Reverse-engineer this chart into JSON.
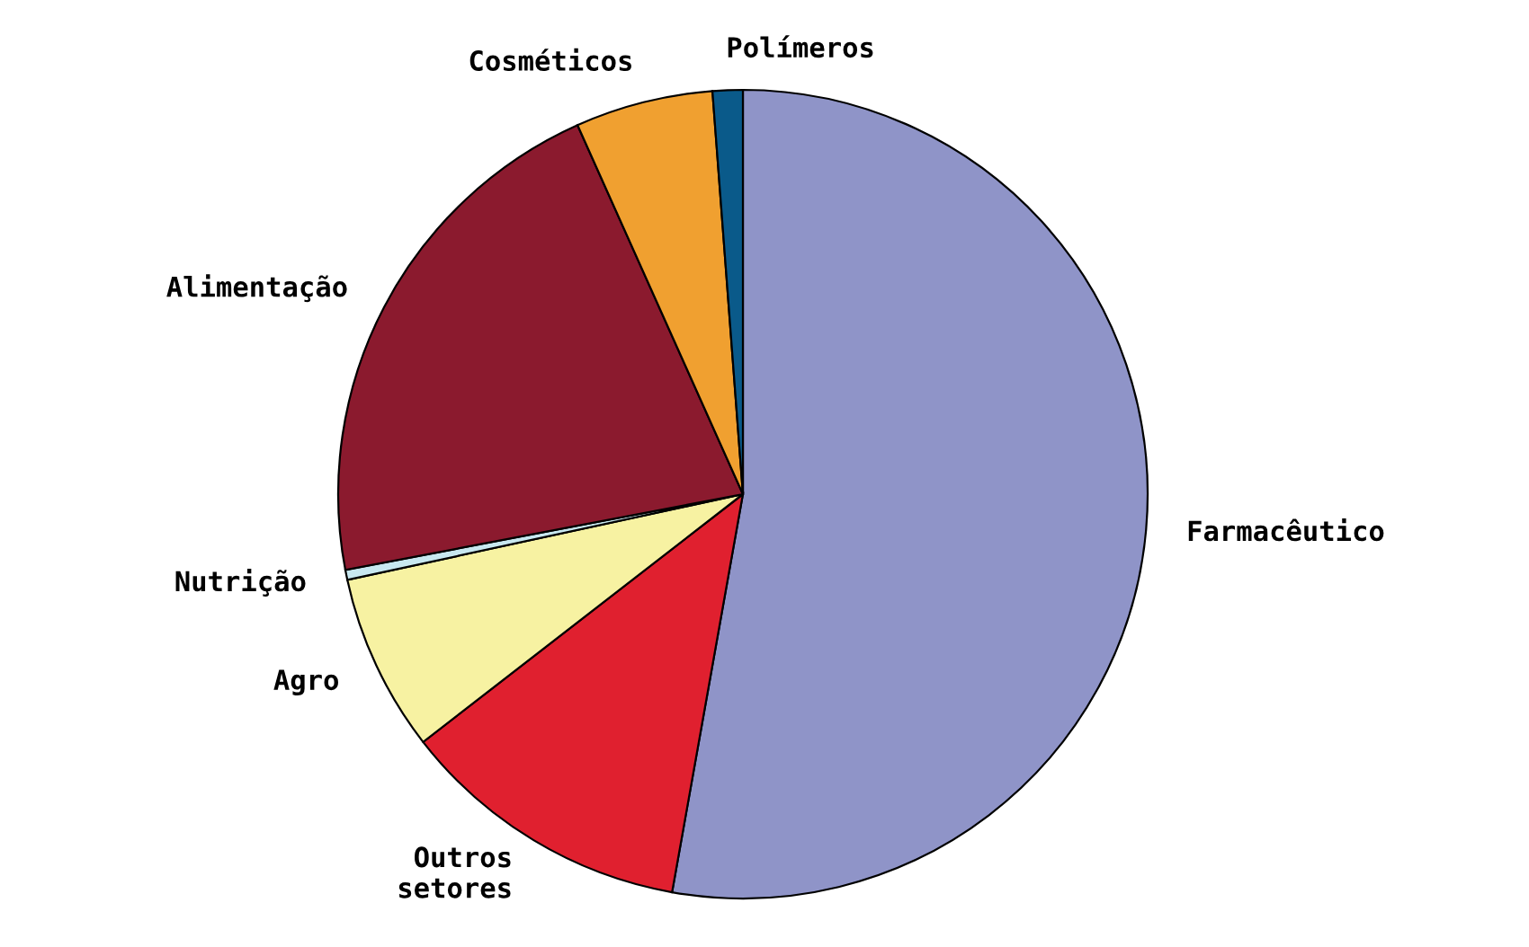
{
  "chart_data": {
    "type": "pie",
    "categories": [
      "Farmacêutico",
      "Outros\nsetores",
      "Agro",
      "Nutrição",
      "Alimentação",
      "Cosméticos",
      "Polímeros"
    ],
    "values": [
      52.8,
      11.7,
      7.1,
      0.4,
      21.3,
      5.5,
      1.2
    ],
    "colors": [
      "#8f94c8",
      "#e0202f",
      "#f7f2a2",
      "#c8e8f0",
      "#8b1a2e",
      "#f0a030",
      "#0a5a8a"
    ]
  }
}
